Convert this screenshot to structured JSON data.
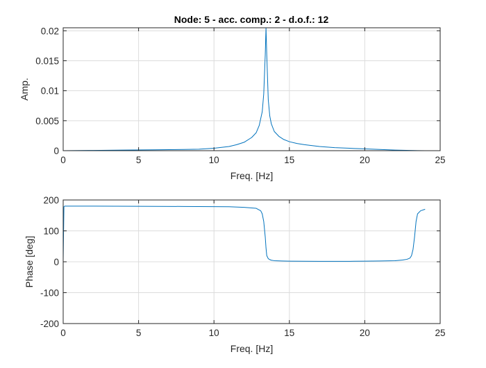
{
  "figure": {
    "title": "Node: 5 - acc. comp.: 2 - d.o.f.: 12"
  },
  "colors": {
    "line": "#0072bd",
    "grid": "#dcdcdc",
    "axis": "#262626"
  },
  "chart_data": [
    {
      "type": "line",
      "title": "Node: 5 - acc. comp.: 2 - d.o.f.: 12",
      "xlabel": "Freq. [Hz]",
      "ylabel": "Amp.",
      "xlim": [
        0,
        25
      ],
      "ylim": [
        0,
        0.0205
      ],
      "xticks": [
        0,
        5,
        10,
        15,
        20,
        25
      ],
      "xtick_labels": [
        "0",
        "5",
        "10",
        "15",
        "20",
        "25"
      ],
      "yticks": [
        0,
        0.005,
        0.01,
        0.015,
        0.02
      ],
      "ytick_labels": [
        "0",
        "0.005",
        "0.01",
        "0.015",
        "0.02"
      ],
      "grid": true,
      "series": [
        {
          "x": [
            0,
            2,
            4,
            6,
            8,
            9,
            10,
            11,
            11.5,
            12,
            12.5,
            12.8,
            13,
            13.2,
            13.3,
            13.4,
            13.45,
            13.5,
            13.6,
            13.7,
            13.8,
            14,
            14.3,
            14.6,
            15,
            15.5,
            16,
            17,
            18,
            19,
            20,
            21,
            22,
            23,
            23.5,
            24
          ],
          "y": [
            0,
            5e-05,
            0.0001,
            0.00015,
            0.0002,
            0.00025,
            0.0004,
            0.0007,
            0.001,
            0.0014,
            0.0022,
            0.003,
            0.0042,
            0.0065,
            0.0095,
            0.016,
            0.0205,
            0.016,
            0.0085,
            0.0058,
            0.0045,
            0.0032,
            0.0024,
            0.0019,
            0.0015,
            0.0012,
            0.001,
            0.0007,
            0.0005,
            0.0004,
            0.0003,
            0.0002,
            0.0001,
            5e-05,
            2e-05,
            0.0
          ]
        }
      ]
    },
    {
      "type": "line",
      "title": "",
      "xlabel": "Freq. [Hz]",
      "ylabel": "Phase [deg]",
      "xlim": [
        0,
        25
      ],
      "ylim": [
        -200,
        200
      ],
      "xticks": [
        0,
        5,
        10,
        15,
        20,
        25
      ],
      "xtick_labels": [
        "0",
        "5",
        "10",
        "15",
        "20",
        "25"
      ],
      "yticks": [
        -200,
        -100,
        0,
        100,
        200
      ],
      "ytick_labels": [
        "-200",
        "-100",
        "0",
        "100",
        "200"
      ],
      "grid": true,
      "series": [
        {
          "x": [
            0,
            0.05,
            0.1,
            2,
            5,
            8,
            10,
            11,
            12,
            12.8,
            13.1,
            13.2,
            13.3,
            13.4,
            13.45,
            13.5,
            13.6,
            13.7,
            13.8,
            14,
            14.5,
            15,
            17,
            19,
            20,
            21,
            22,
            22.5,
            22.8,
            23,
            23.1,
            23.2,
            23.3,
            23.4,
            23.5,
            23.7,
            24
          ],
          "y": [
            5,
            178,
            180,
            180,
            179.5,
            179,
            178.5,
            178,
            176,
            173,
            165,
            155,
            130,
            80,
            45,
            20,
            10,
            7,
            5,
            3.5,
            2.5,
            2,
            1.5,
            1.5,
            2,
            2.5,
            3.5,
            5.5,
            8,
            12,
            20,
            40,
            80,
            130,
            155,
            165,
            170
          ]
        }
      ]
    }
  ]
}
